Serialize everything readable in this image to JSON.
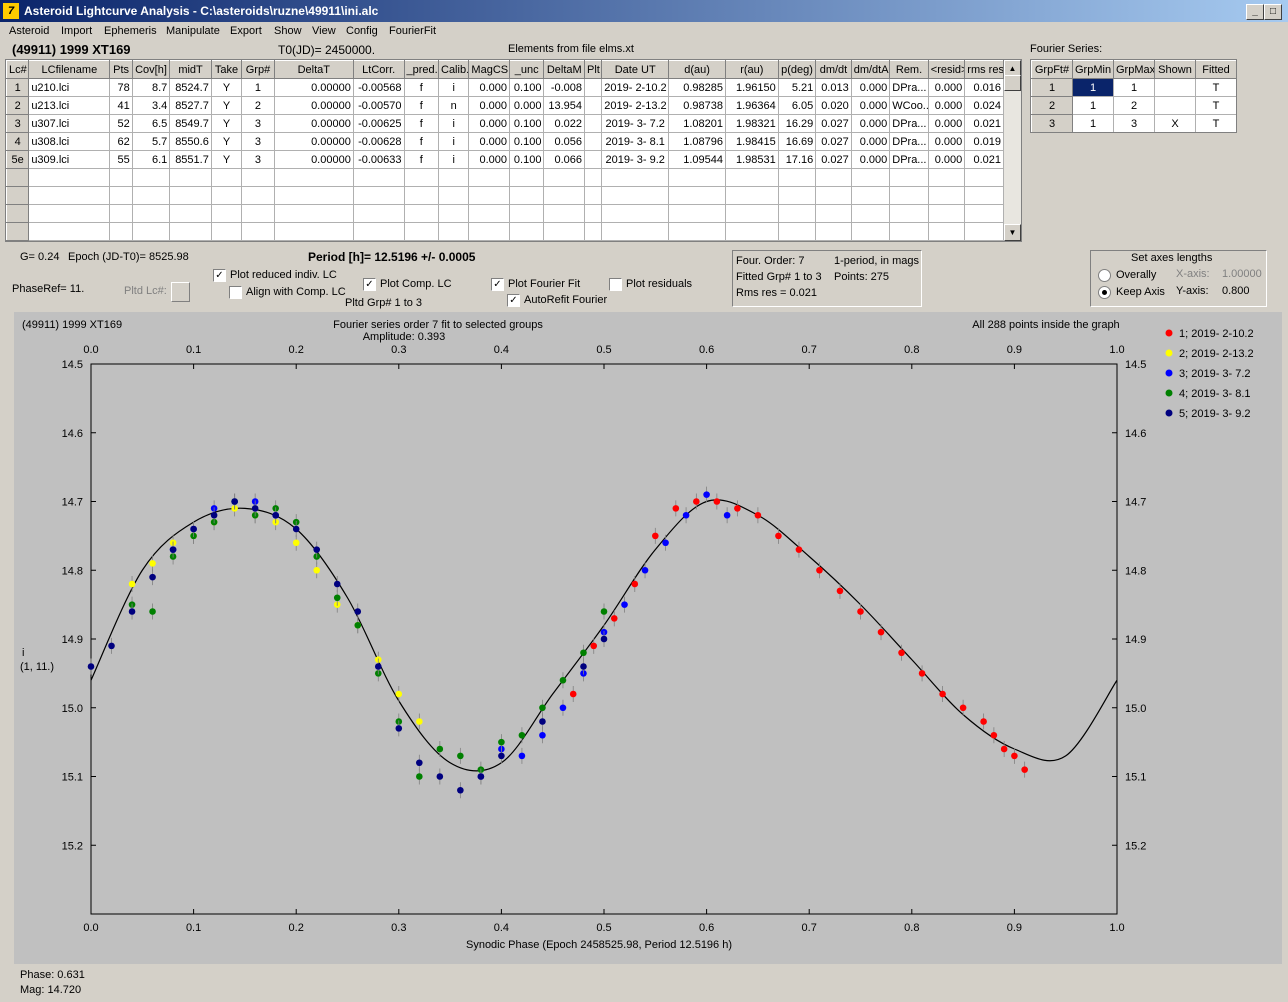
{
  "window": {
    "title": "Asteroid Lightcurve Analysis - C:\\asteroids\\ruzne\\49911\\ini.alc",
    "icon": "ALCDEF-app-icon",
    "minimize": "_",
    "maximize": "□",
    "close": "X"
  },
  "menu": [
    "Asteroid",
    "Import",
    "Ephemeris",
    "Manipulate",
    "Export",
    "Show",
    "View",
    "Config",
    "FourierFit"
  ],
  "header": {
    "asteroid": "(49911) 1999 XT169",
    "t0": "T0(JD)= 2450000.",
    "elements": "Elements from file elms.xt",
    "fourier_label": "Fourier Series:"
  },
  "lc_table": {
    "columns": [
      "Lc#",
      "LCfilename",
      "Pts",
      "Cov[h]",
      "midT",
      "Take",
      "Grp#",
      "DeltaT",
      "LtCorr.",
      "_pred.",
      "Calib.",
      "MagCS",
      "_unc",
      "DeltaM",
      "Plt",
      "Date UT",
      "d(au)",
      "r(au)",
      "p(deg)",
      "dm/dt",
      "dm/dtA",
      "Rem.",
      "<resid>",
      "rms res"
    ],
    "rows": [
      [
        "1",
        "u210.lci",
        "78",
        "8.7",
        "8524.7",
        "Y",
        "1",
        "0.00000",
        "-0.00568",
        "f",
        "i",
        "0.000",
        "0.100",
        "-0.008",
        "",
        "2019- 2-10.2",
        "0.98285",
        "1.96150",
        "5.21",
        "0.013",
        "0.000",
        "DPra...",
        "0.000",
        "0.016"
      ],
      [
        "2",
        "u213.lci",
        "41",
        "3.4",
        "8527.7",
        "Y",
        "2",
        "0.00000",
        "-0.00570",
        "f",
        "n",
        "0.000",
        "0.000",
        "13.954",
        "",
        "2019- 2-13.2",
        "0.98738",
        "1.96364",
        "6.05",
        "0.020",
        "0.000",
        "WCoo...",
        "0.000",
        "0.024"
      ],
      [
        "3",
        "u307.lci",
        "52",
        "6.5",
        "8549.7",
        "Y",
        "3",
        "0.00000",
        "-0.00625",
        "f",
        "i",
        "0.000",
        "0.100",
        "0.022",
        "",
        "2019- 3- 7.2",
        "1.08201",
        "1.98321",
        "16.29",
        "0.027",
        "0.000",
        "DPra...",
        "0.000",
        "0.021"
      ],
      [
        "4",
        "u308.lci",
        "62",
        "5.7",
        "8550.6",
        "Y",
        "3",
        "0.00000",
        "-0.00628",
        "f",
        "i",
        "0.000",
        "0.100",
        "0.056",
        "",
        "2019- 3- 8.1",
        "1.08796",
        "1.98415",
        "16.69",
        "0.027",
        "0.000",
        "DPra...",
        "0.000",
        "0.019"
      ],
      [
        "5e",
        "u309.lci",
        "55",
        "6.1",
        "8551.7",
        "Y",
        "3",
        "0.00000",
        "-0.00633",
        "f",
        "i",
        "0.000",
        "0.100",
        "0.066",
        "",
        "2019- 3- 9.2",
        "1.09544",
        "1.98531",
        "17.16",
        "0.027",
        "0.000",
        "DPra...",
        "0.000",
        "0.021"
      ]
    ]
  },
  "fourier_table": {
    "columns": [
      "GrpFt#",
      "GrpMin",
      "GrpMax",
      "Shown",
      "Fitted"
    ],
    "rows": [
      [
        "1",
        "1",
        "1",
        "",
        "T"
      ],
      [
        "2",
        "1",
        "2",
        "",
        "T"
      ],
      [
        "3",
        "1",
        "3",
        "X",
        "T"
      ]
    ]
  },
  "controls": {
    "g": "G= 0.24",
    "epoch": "Epoch (JD-T0)= 8525.98",
    "period": "Period [h]= 12.5196 +/- 0.0005",
    "phaseref": "PhaseRef= 11.",
    "pltd_lc": "Pltd Lc#:",
    "plot_reduced": "Plot reduced indiv. LC",
    "align_comp": "Align with Comp. LC",
    "plot_comp": "Plot Comp. LC",
    "pltd_grp": "Pltd Grp#  1   to    3",
    "plot_fourier": "Plot Fourier Fit",
    "autorefit": "AutoRefit Fourier",
    "plot_residuals": "Plot residuals",
    "four_order": "Four. Order:  7",
    "one_period": "1-period, in mags",
    "fitted_grp": "Fitted Grp# 1 to 3",
    "points": "Points: 275",
    "rms": "Rms res      = 0.021",
    "axes_title": "Set axes lengths",
    "overally": "Overally",
    "keep_axis": "Keep Axis",
    "xaxis_label": "X-axis:",
    "xaxis_value": "1.00000",
    "yaxis_label": "Y-axis:",
    "yaxis_value": "0.800"
  },
  "status": {
    "phase": "Phase:  0.631",
    "mag": "Mag:    14.720"
  },
  "colors": {
    "red": "#ff0000",
    "yellow": "#ffff00",
    "blue": "#0000ff",
    "green": "#008000",
    "navy": "#00007f",
    "plot_bg": "#c0c0c0"
  },
  "chart_data": {
    "type": "scatter",
    "title": "Fourier series order 7 fit to selected groups",
    "subtitle": "Amplitude: 0.393",
    "object_label": "(49911) 1999 XT169",
    "inside_note": "All 288 points inside the graph",
    "xlabel": "Synodic Phase (Epoch 2458525.98, Period 12.5196 h)",
    "ylabel": "i",
    "ylabel2": "(1, 11.)",
    "xlim": [
      0,
      1.0
    ],
    "ylim": [
      15.3,
      14.5
    ],
    "x_ticks": [
      "0.0",
      "0.1",
      "0.2",
      "0.3",
      "0.4",
      "0.5",
      "0.6",
      "0.7",
      "0.8",
      "0.9",
      "1.0"
    ],
    "y_ticks": [
      "14.5",
      "14.6",
      "14.7",
      "14.8",
      "14.9",
      "15.0",
      "15.1",
      "15.2"
    ],
    "legend": [
      "1; 2019- 2-10.2",
      "2; 2019- 2-13.2",
      "3; 2019- 3- 7.2",
      "4; 2019- 3- 8.1",
      "5; 2019- 3- 9.2"
    ],
    "curve": {
      "x": [
        0.0,
        0.05,
        0.1,
        0.15,
        0.2,
        0.25,
        0.3,
        0.35,
        0.4,
        0.45,
        0.5,
        0.55,
        0.6,
        0.65,
        0.7,
        0.75,
        0.8,
        0.85,
        0.9,
        0.95,
        1.0
      ],
      "y": [
        14.96,
        14.8,
        14.73,
        14.71,
        14.74,
        14.84,
        14.99,
        15.08,
        15.08,
        14.98,
        14.88,
        14.77,
        14.7,
        14.72,
        14.78,
        14.85,
        14.93,
        15.01,
        15.06,
        15.07,
        14.96
      ]
    },
    "series": [
      {
        "name": "1; 2019- 2-10.2",
        "color": "red",
        "x": [
          0.47,
          0.49,
          0.51,
          0.53,
          0.55,
          0.57,
          0.59,
          0.61,
          0.63,
          0.65,
          0.67,
          0.69,
          0.71,
          0.73,
          0.75,
          0.77,
          0.79,
          0.81,
          0.83,
          0.85,
          0.87,
          0.88,
          0.89,
          0.9,
          0.91
        ],
        "y": [
          14.98,
          14.91,
          14.87,
          14.82,
          14.75,
          14.71,
          14.7,
          14.7,
          14.71,
          14.72,
          14.75,
          14.77,
          14.8,
          14.83,
          14.86,
          14.89,
          14.92,
          14.95,
          14.98,
          15.0,
          15.02,
          15.04,
          15.06,
          15.07,
          15.09
        ]
      },
      {
        "name": "2; 2019- 2-13.2",
        "color": "yellow",
        "x": [
          0.04,
          0.06,
          0.08,
          0.1,
          0.12,
          0.14,
          0.16,
          0.18,
          0.2,
          0.22,
          0.24,
          0.26,
          0.28,
          0.3,
          0.32
        ],
        "y": [
          14.82,
          14.79,
          14.76,
          14.75,
          14.73,
          14.71,
          14.72,
          14.73,
          14.76,
          14.8,
          14.85,
          14.88,
          14.93,
          14.98,
          15.02
        ]
      },
      {
        "name": "3; 2019- 3- 7.2",
        "color": "blue",
        "x": [
          0.08,
          0.1,
          0.12,
          0.14,
          0.16,
          0.18,
          0.38,
          0.4,
          0.42,
          0.44,
          0.46,
          0.48,
          0.5,
          0.52,
          0.54,
          0.56,
          0.58,
          0.6,
          0.62
        ],
        "y": [
          14.77,
          14.74,
          14.71,
          14.7,
          14.7,
          14.72,
          15.1,
          15.06,
          15.07,
          15.04,
          15.0,
          14.95,
          14.89,
          14.85,
          14.8,
          14.76,
          14.72,
          14.69,
          14.72
        ]
      },
      {
        "name": "4; 2019- 3- 8.1",
        "color": "green",
        "x": [
          0.04,
          0.06,
          0.08,
          0.1,
          0.12,
          0.14,
          0.16,
          0.18,
          0.2,
          0.22,
          0.24,
          0.26,
          0.28,
          0.3,
          0.32,
          0.34,
          0.36,
          0.38,
          0.4,
          0.42,
          0.44,
          0.46,
          0.48,
          0.5
        ],
        "y": [
          14.85,
          14.86,
          14.78,
          14.75,
          14.73,
          14.7,
          14.72,
          14.71,
          14.73,
          14.78,
          14.84,
          14.88,
          14.95,
          15.02,
          15.1,
          15.06,
          15.07,
          15.09,
          15.05,
          15.04,
          15.0,
          14.96,
          14.92,
          14.86
        ]
      },
      {
        "name": "5; 2019- 3- 9.2",
        "color": "navy",
        "x": [
          0.0,
          0.02,
          0.04,
          0.06,
          0.08,
          0.1,
          0.12,
          0.14,
          0.16,
          0.18,
          0.2,
          0.22,
          0.24,
          0.26,
          0.28,
          0.3,
          0.32,
          0.34,
          0.36,
          0.38,
          0.4,
          0.44,
          0.48,
          0.5
        ],
        "y": [
          14.94,
          14.91,
          14.86,
          14.81,
          14.77,
          14.74,
          14.72,
          14.7,
          14.71,
          14.72,
          14.74,
          14.77,
          14.82,
          14.86,
          14.94,
          15.03,
          15.08,
          15.1,
          15.12,
          15.1,
          15.07,
          15.02,
          14.94,
          14.9
        ]
      }
    ]
  }
}
